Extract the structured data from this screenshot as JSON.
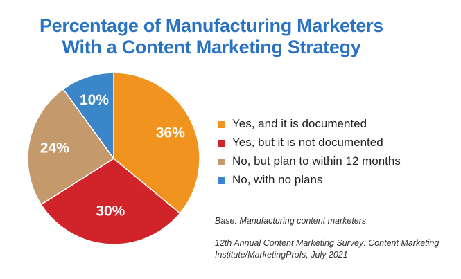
{
  "chart_data": {
    "type": "pie",
    "title": [
      "Percentage of Manufacturing Marketers",
      "With a Content Marketing Strategy"
    ],
    "categories": [
      "Yes, and it is documented",
      "Yes, but it is not documented",
      "No, but plan to within 12 months",
      "No, with no plans"
    ],
    "values": [
      36,
      30,
      24,
      10
    ],
    "data_labels": [
      "36%",
      "30%",
      "24%",
      "10%"
    ],
    "colors": [
      "#f0941f",
      "#d0232a",
      "#c49a6c",
      "#3a86c8"
    ],
    "legend_placement": "right"
  },
  "notes": {
    "base": "Base: Manufacturing content marketers.",
    "source_line1": "12th Annual Content Marketing Survey: Content Marketing",
    "source_line2": "Institute/MarketingProfs, July 2021"
  }
}
